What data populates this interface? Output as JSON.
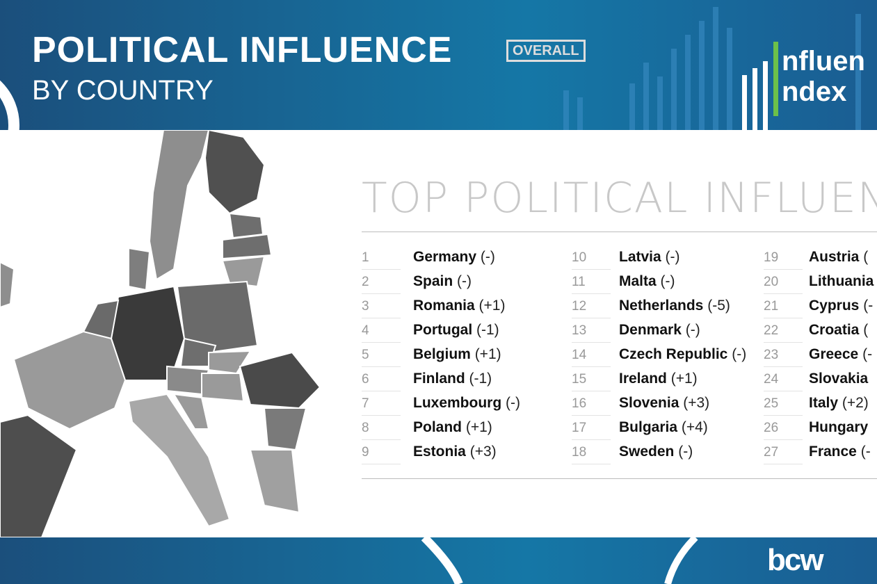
{
  "header": {
    "title": "POLITICAL INFLUENCE",
    "badge": "OVERALL",
    "subtitle": "BY COUNTRY",
    "logo": [
      "nfluen",
      "ndex"
    ]
  },
  "heading": "TOP POLITICAL INFLUEN",
  "rankings": [
    {
      "rank": 1,
      "country": "Germany",
      "change": "(-)"
    },
    {
      "rank": 2,
      "country": "Spain",
      "change": "(-)"
    },
    {
      "rank": 3,
      "country": "Romania",
      "change": "(+1)"
    },
    {
      "rank": 4,
      "country": "Portugal",
      "change": "(-1)"
    },
    {
      "rank": 5,
      "country": "Belgium",
      "change": "(+1)"
    },
    {
      "rank": 6,
      "country": "Finland",
      "change": "(-1)"
    },
    {
      "rank": 7,
      "country": "Luxembourg",
      "change": "(-)"
    },
    {
      "rank": 8,
      "country": "Poland",
      "change": "(+1)"
    },
    {
      "rank": 9,
      "country": "Estonia",
      "change": "(+3)"
    },
    {
      "rank": 10,
      "country": "Latvia",
      "change": "(-)"
    },
    {
      "rank": 11,
      "country": "Malta",
      "change": "(-)"
    },
    {
      "rank": 12,
      "country": "Netherlands",
      "change": "(-5)"
    },
    {
      "rank": 13,
      "country": "Denmark",
      "change": "(-)"
    },
    {
      "rank": 14,
      "country": "Czech Republic",
      "change": "(-)"
    },
    {
      "rank": 15,
      "country": "Ireland",
      "change": "(+1)"
    },
    {
      "rank": 16,
      "country": "Slovenia",
      "change": "(+3)"
    },
    {
      "rank": 17,
      "country": "Bulgaria",
      "change": "(+4)"
    },
    {
      "rank": 18,
      "country": "Sweden",
      "change": "(-)"
    },
    {
      "rank": 19,
      "country": "Austria",
      "change": "("
    },
    {
      "rank": 20,
      "country": "Lithuania"
    },
    {
      "rank": 21,
      "country": "Cyprus",
      "change": "(-"
    },
    {
      "rank": 22,
      "country": "Croatia",
      "change": "("
    },
    {
      "rank": 23,
      "country": "Greece",
      "change": "(-"
    },
    {
      "rank": 24,
      "country": "Slovakia"
    },
    {
      "rank": 25,
      "country": "Italy",
      "change": "(+2)"
    },
    {
      "rank": 26,
      "country": "Hungary"
    },
    {
      "rank": 27,
      "country": "France",
      "change": "(-"
    }
  ],
  "footer": {
    "brand": "bcw"
  }
}
